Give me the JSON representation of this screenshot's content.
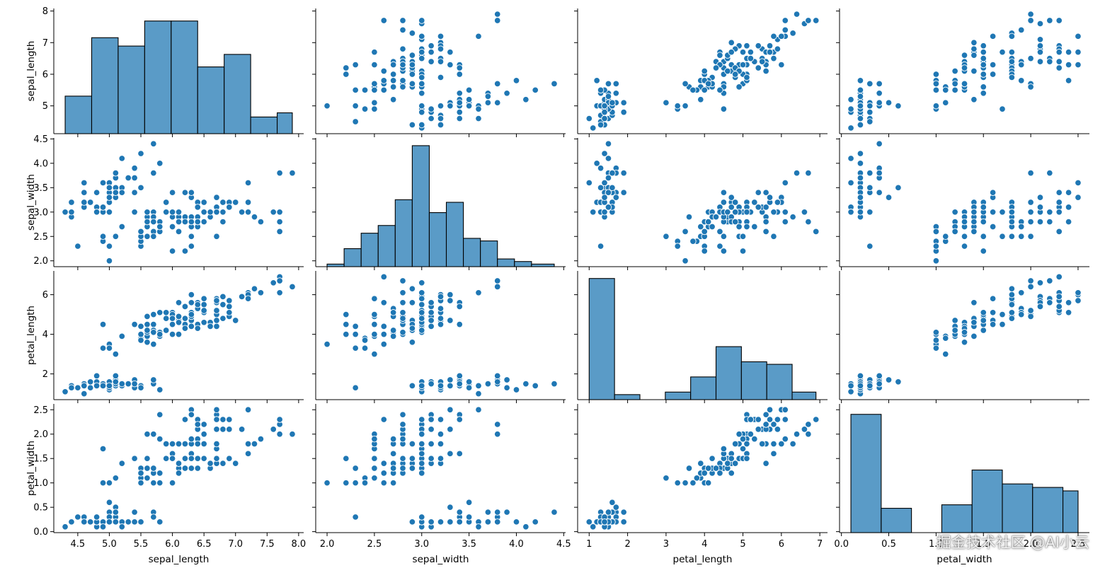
{
  "colors": {
    "fill": "#1f77b4",
    "hist_fill": "#5a9bc7",
    "hist_edge": "#000000",
    "marker_edge": "#ffffff",
    "axis": "#000000"
  },
  "watermark": "掘金技术社区 @AI小云",
  "chart_data": {
    "type": "pairplot",
    "variables": [
      "sepal_length",
      "sepal_width",
      "petal_length",
      "petal_width"
    ],
    "ranges": {
      "sepal_length": [
        4.12,
        8.08
      ],
      "sepal_width": [
        1.88,
        4.52
      ],
      "petal_length": [
        0.7,
        7.2
      ],
      "petal_width": [
        -0.02,
        2.62
      ]
    },
    "ticks": {
      "sepal_length": [
        4.5,
        5.0,
        5.5,
        6.0,
        6.5,
        7.0,
        7.5,
        8.0
      ],
      "sepal_width": [
        2.0,
        2.5,
        3.0,
        3.5,
        4.0,
        4.5
      ],
      "petal_length": [
        1,
        2,
        3,
        4,
        5,
        6,
        7
      ],
      "petal_width": [
        0.0,
        0.5,
        1.0,
        1.5,
        2.0,
        2.5
      ]
    },
    "y_tick_labels": {
      "sepal_length": [
        "5",
        "6",
        "7",
        "8"
      ],
      "sepal_width": [
        "2.0",
        "2.5",
        "3.0",
        "3.5",
        "4.0",
        "4.5"
      ],
      "petal_length": [
        "2",
        "4",
        "6"
      ],
      "petal_width": [
        "0.0",
        "0.5",
        "1.0",
        "1.5",
        "2.0",
        "2.5"
      ]
    },
    "x_tick_labels": {
      "sepal_length": [
        "4.5",
        "5.0",
        "5.5",
        "6.0",
        "6.5",
        "7.0",
        "7.5",
        "8.0"
      ],
      "sepal_width": [
        "2.0",
        "2.5",
        "3.0",
        "3.5",
        "4.0",
        "4.5"
      ],
      "petal_length": [
        "1",
        "2",
        "3",
        "4",
        "5",
        "6",
        "7"
      ],
      "petal_width": [
        "0.0",
        "0.5",
        "1.0",
        "1.5",
        "2.0",
        "2.5"
      ]
    },
    "histograms": {
      "sepal_length": {
        "edges": [
          4.3,
          4.72,
          5.14,
          5.56,
          5.98,
          6.4,
          6.82,
          7.24,
          7.66,
          7.9
        ],
        "counts": [
          9,
          23,
          21,
          27,
          27,
          16,
          19,
          4,
          5
        ]
      },
      "sepal_width": {
        "edges": [
          2.0,
          2.18,
          2.36,
          2.54,
          2.72,
          2.9,
          3.08,
          3.26,
          3.44,
          3.62,
          3.8,
          3.98,
          4.16,
          4.4
        ],
        "counts": [
          1,
          7,
          13,
          16,
          26,
          47,
          21,
          25,
          11,
          10,
          3,
          2,
          1
        ]
      },
      "petal_length": {
        "edges": [
          1.0,
          1.66,
          2.32,
          2.98,
          3.64,
          4.3,
          4.96,
          5.62,
          6.28,
          6.9
        ],
        "counts": [
          48,
          2,
          0,
          3,
          9,
          21,
          15,
          14,
          3
        ]
      },
      "petal_width": {
        "edges": [
          0.1,
          0.42,
          0.74,
          1.06,
          1.38,
          1.7,
          2.02,
          2.34,
          2.5
        ],
        "counts": [
          34,
          7,
          0,
          8,
          18,
          14,
          13,
          12
        ]
      }
    },
    "hist_ymax": {
      "sepal_length": 30,
      "sepal_width": 50,
      "petal_length": 51,
      "petal_width": 37
    },
    "records": [
      [
        5.1,
        3.5,
        1.4,
        0.2
      ],
      [
        4.9,
        3.0,
        1.4,
        0.2
      ],
      [
        4.7,
        3.2,
        1.3,
        0.2
      ],
      [
        4.6,
        3.1,
        1.5,
        0.2
      ],
      [
        5.0,
        3.6,
        1.4,
        0.2
      ],
      [
        5.4,
        3.9,
        1.7,
        0.4
      ],
      [
        4.6,
        3.4,
        1.4,
        0.3
      ],
      [
        5.0,
        3.4,
        1.5,
        0.2
      ],
      [
        4.4,
        2.9,
        1.4,
        0.2
      ],
      [
        4.9,
        3.1,
        1.5,
        0.1
      ],
      [
        5.4,
        3.7,
        1.5,
        0.2
      ],
      [
        4.8,
        3.4,
        1.6,
        0.2
      ],
      [
        4.8,
        3.0,
        1.4,
        0.1
      ],
      [
        4.3,
        3.0,
        1.1,
        0.1
      ],
      [
        5.8,
        4.0,
        1.2,
        0.2
      ],
      [
        5.7,
        4.4,
        1.5,
        0.4
      ],
      [
        5.4,
        3.9,
        1.3,
        0.4
      ],
      [
        5.1,
        3.5,
        1.4,
        0.3
      ],
      [
        5.7,
        3.8,
        1.7,
        0.3
      ],
      [
        5.1,
        3.8,
        1.5,
        0.3
      ],
      [
        5.4,
        3.4,
        1.7,
        0.2
      ],
      [
        5.1,
        3.7,
        1.5,
        0.4
      ],
      [
        4.6,
        3.6,
        1.0,
        0.2
      ],
      [
        5.1,
        3.3,
        1.7,
        0.5
      ],
      [
        4.8,
        3.4,
        1.9,
        0.2
      ],
      [
        5.0,
        3.0,
        1.6,
        0.2
      ],
      [
        5.0,
        3.4,
        1.6,
        0.4
      ],
      [
        5.2,
        3.5,
        1.5,
        0.2
      ],
      [
        5.2,
        3.4,
        1.4,
        0.2
      ],
      [
        4.7,
        3.2,
        1.6,
        0.2
      ],
      [
        4.8,
        3.1,
        1.6,
        0.2
      ],
      [
        5.4,
        3.4,
        1.5,
        0.4
      ],
      [
        5.2,
        4.1,
        1.5,
        0.1
      ],
      [
        5.5,
        4.2,
        1.4,
        0.2
      ],
      [
        4.9,
        3.1,
        1.5,
        0.2
      ],
      [
        5.0,
        3.2,
        1.2,
        0.2
      ],
      [
        5.5,
        3.5,
        1.3,
        0.2
      ],
      [
        4.9,
        3.6,
        1.4,
        0.1
      ],
      [
        4.4,
        3.0,
        1.3,
        0.2
      ],
      [
        5.1,
        3.4,
        1.5,
        0.2
      ],
      [
        5.0,
        3.5,
        1.3,
        0.3
      ],
      [
        4.5,
        2.3,
        1.3,
        0.3
      ],
      [
        4.4,
        3.2,
        1.3,
        0.2
      ],
      [
        5.0,
        3.5,
        1.6,
        0.6
      ],
      [
        5.1,
        3.8,
        1.9,
        0.4
      ],
      [
        4.8,
        3.0,
        1.4,
        0.3
      ],
      [
        5.1,
        3.8,
        1.6,
        0.2
      ],
      [
        4.6,
        3.2,
        1.4,
        0.2
      ],
      [
        5.3,
        3.7,
        1.5,
        0.2
      ],
      [
        5.0,
        3.3,
        1.4,
        0.2
      ],
      [
        7.0,
        3.2,
        4.7,
        1.4
      ],
      [
        6.4,
        3.2,
        4.5,
        1.5
      ],
      [
        6.9,
        3.1,
        4.9,
        1.5
      ],
      [
        5.5,
        2.3,
        4.0,
        1.3
      ],
      [
        6.5,
        2.8,
        4.6,
        1.5
      ],
      [
        5.7,
        2.8,
        4.5,
        1.3
      ],
      [
        6.3,
        3.3,
        4.7,
        1.6
      ],
      [
        4.9,
        2.4,
        3.3,
        1.0
      ],
      [
        6.6,
        2.9,
        4.6,
        1.3
      ],
      [
        5.2,
        2.7,
        3.9,
        1.4
      ],
      [
        5.0,
        2.0,
        3.5,
        1.0
      ],
      [
        5.9,
        3.0,
        4.2,
        1.5
      ],
      [
        6.0,
        2.2,
        4.0,
        1.0
      ],
      [
        6.1,
        2.9,
        4.7,
        1.4
      ],
      [
        5.6,
        2.9,
        3.6,
        1.3
      ],
      [
        6.7,
        3.1,
        4.4,
        1.4
      ],
      [
        5.6,
        3.0,
        4.5,
        1.5
      ],
      [
        5.8,
        2.7,
        4.1,
        1.0
      ],
      [
        6.2,
        2.2,
        4.5,
        1.5
      ],
      [
        5.6,
        2.5,
        3.9,
        1.1
      ],
      [
        5.9,
        3.2,
        4.8,
        1.8
      ],
      [
        6.1,
        2.8,
        4.0,
        1.3
      ],
      [
        6.3,
        2.5,
        4.9,
        1.5
      ],
      [
        6.1,
        2.8,
        4.7,
        1.2
      ],
      [
        6.4,
        2.9,
        4.3,
        1.3
      ],
      [
        6.6,
        3.0,
        4.4,
        1.4
      ],
      [
        6.8,
        2.8,
        4.8,
        1.4
      ],
      [
        6.7,
        3.0,
        5.0,
        1.7
      ],
      [
        6.0,
        2.9,
        4.5,
        1.5
      ],
      [
        5.7,
        2.6,
        3.5,
        1.0
      ],
      [
        5.5,
        2.4,
        3.8,
        1.1
      ],
      [
        5.5,
        2.4,
        3.7,
        1.0
      ],
      [
        5.8,
        2.7,
        3.9,
        1.2
      ],
      [
        6.0,
        2.7,
        5.1,
        1.6
      ],
      [
        5.4,
        3.0,
        4.5,
        1.5
      ],
      [
        6.0,
        3.4,
        4.5,
        1.6
      ],
      [
        6.7,
        3.1,
        4.7,
        1.5
      ],
      [
        6.3,
        2.3,
        4.4,
        1.3
      ],
      [
        5.6,
        3.0,
        4.1,
        1.3
      ],
      [
        5.5,
        2.5,
        4.0,
        1.3
      ],
      [
        5.5,
        2.6,
        4.4,
        1.2
      ],
      [
        6.1,
        3.0,
        4.6,
        1.4
      ],
      [
        5.8,
        2.6,
        4.0,
        1.2
      ],
      [
        5.0,
        2.3,
        3.3,
        1.0
      ],
      [
        5.6,
        2.7,
        4.2,
        1.3
      ],
      [
        5.7,
        3.0,
        4.2,
        1.2
      ],
      [
        5.7,
        2.9,
        4.2,
        1.3
      ],
      [
        6.2,
        2.9,
        4.3,
        1.3
      ],
      [
        5.1,
        2.5,
        3.0,
        1.1
      ],
      [
        5.7,
        2.8,
        4.1,
        1.3
      ],
      [
        6.3,
        3.3,
        6.0,
        2.5
      ],
      [
        5.8,
        2.7,
        5.1,
        1.9
      ],
      [
        7.1,
        3.0,
        5.9,
        2.1
      ],
      [
        6.3,
        2.9,
        5.6,
        1.8
      ],
      [
        6.5,
        3.0,
        5.8,
        2.2
      ],
      [
        7.6,
        3.0,
        6.6,
        2.1
      ],
      [
        4.9,
        2.5,
        4.5,
        1.7
      ],
      [
        7.3,
        2.9,
        6.3,
        1.8
      ],
      [
        6.7,
        2.5,
        5.8,
        1.8
      ],
      [
        7.2,
        3.6,
        6.1,
        2.5
      ],
      [
        6.5,
        3.2,
        5.1,
        2.0
      ],
      [
        6.4,
        2.7,
        5.3,
        1.9
      ],
      [
        6.8,
        3.0,
        5.5,
        2.1
      ],
      [
        5.7,
        2.5,
        5.0,
        2.0
      ],
      [
        5.8,
        2.8,
        5.1,
        2.4
      ],
      [
        6.4,
        3.2,
        5.3,
        2.3
      ],
      [
        6.5,
        3.0,
        5.5,
        1.8
      ],
      [
        7.7,
        3.8,
        6.7,
        2.2
      ],
      [
        7.7,
        2.6,
        6.9,
        2.3
      ],
      [
        6.0,
        2.2,
        5.0,
        1.5
      ],
      [
        6.9,
        3.2,
        5.7,
        2.3
      ],
      [
        5.6,
        2.8,
        4.9,
        2.0
      ],
      [
        7.7,
        2.8,
        6.7,
        2.0
      ],
      [
        6.3,
        2.7,
        4.9,
        1.8
      ],
      [
        6.7,
        3.3,
        5.7,
        2.1
      ],
      [
        7.2,
        3.2,
        6.0,
        1.8
      ],
      [
        6.2,
        2.8,
        4.8,
        1.8
      ],
      [
        6.1,
        3.0,
        4.9,
        1.8
      ],
      [
        6.4,
        2.8,
        5.6,
        2.1
      ],
      [
        7.2,
        3.0,
        5.8,
        1.6
      ],
      [
        7.4,
        2.8,
        6.1,
        1.9
      ],
      [
        7.9,
        3.8,
        6.4,
        2.0
      ],
      [
        6.4,
        2.8,
        5.6,
        2.2
      ],
      [
        6.3,
        2.8,
        5.1,
        1.5
      ],
      [
        6.1,
        2.6,
        5.6,
        1.4
      ],
      [
        7.7,
        3.0,
        6.1,
        2.3
      ],
      [
        6.3,
        3.4,
        5.6,
        2.4
      ],
      [
        6.4,
        3.1,
        5.5,
        1.8
      ],
      [
        6.0,
        3.0,
        4.8,
        1.8
      ],
      [
        6.9,
        3.1,
        5.4,
        2.1
      ],
      [
        6.7,
        3.1,
        5.6,
        2.4
      ],
      [
        6.9,
        3.1,
        5.1,
        2.3
      ],
      [
        5.8,
        2.7,
        5.1,
        1.9
      ],
      [
        6.8,
        3.2,
        5.9,
        2.3
      ],
      [
        6.7,
        3.3,
        5.7,
        2.5
      ],
      [
        6.7,
        3.0,
        5.2,
        2.3
      ],
      [
        6.3,
        2.5,
        5.0,
        1.9
      ],
      [
        6.5,
        3.0,
        5.2,
        2.0
      ],
      [
        6.2,
        3.4,
        5.4,
        2.3
      ],
      [
        5.9,
        3.0,
        5.1,
        1.8
      ]
    ]
  }
}
